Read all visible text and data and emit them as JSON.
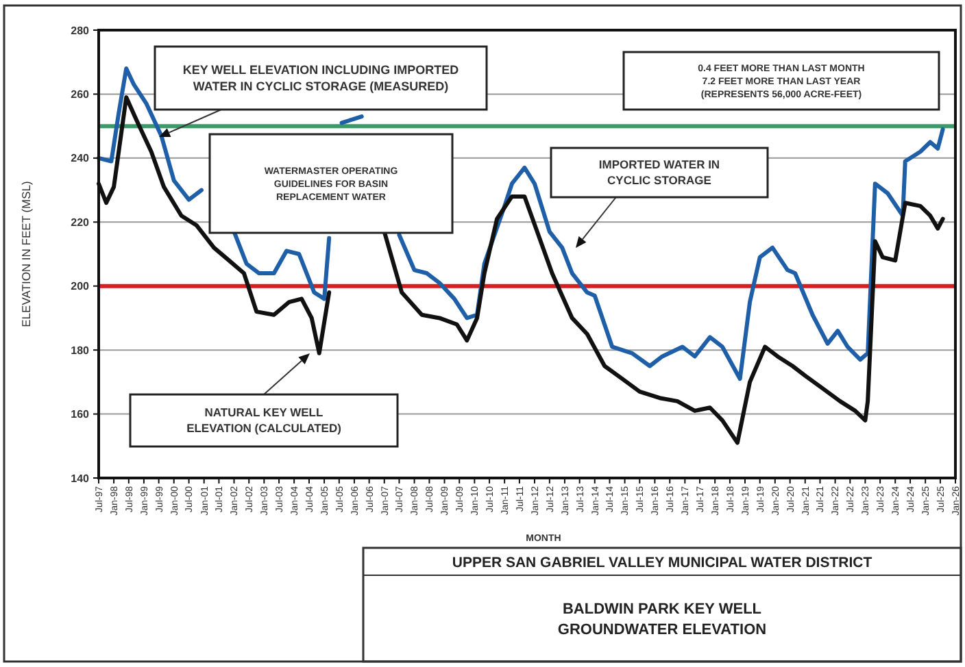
{
  "chart_data": {
    "type": "line",
    "title": "UPPER SAN GABRIEL VALLEY MUNICIPAL WATER DISTRICT",
    "subtitle": "BALDWIN PARK KEY WELL\nGROUNDWATER ELEVATION",
    "xlabel": "MONTH",
    "ylabel": "ELEVATION IN FEET (MSL)",
    "series": [
      {
        "color": "#1f5fa8",
        "x": [
          "1997-07",
          "1997-12",
          "1998-03",
          "1998-06",
          "1998-09",
          "1999-02",
          "1999-08",
          "2000-01",
          "2000-07",
          "2000-12",
          "2001-06",
          "2002-01",
          "2002-06",
          "2002-11",
          "2003-05",
          "2003-10",
          "2004-03",
          "2004-09",
          "2005-01",
          "2005-03",
          "2005-05",
          "2005-08",
          "2006-04",
          "2006-12",
          "2007-07",
          "2008-01",
          "2008-06",
          "2008-11",
          "2009-05",
          "2009-10",
          "2010-02",
          "2010-05",
          "2011-01",
          "2011-04",
          "2011-09",
          "2012-01",
          "2012-07",
          "2012-12",
          "2013-04",
          "2013-10",
          "2014-01",
          "2014-08",
          "2015-04",
          "2015-11",
          "2016-04",
          "2016-12",
          "2017-05",
          "2017-11",
          "2018-04",
          "2018-11",
          "2019-03",
          "2019-07",
          "2019-12",
          "2020-06",
          "2020-09",
          "2021-04",
          "2021-10",
          "2022-02",
          "2022-06",
          "2022-11",
          "2023-02",
          "2023-05",
          "2023-10",
          "2024-04",
          "2024-05",
          "2024-11",
          "2025-03",
          "2025-06",
          "2025-08"
        ],
        "values": [
          240,
          239,
          254,
          268,
          263,
          257,
          247,
          233,
          227,
          230,
          null,
          217,
          207,
          204,
          204,
          211,
          210,
          198,
          196,
          215,
          null,
          251,
          253,
          null,
          216,
          205,
          204,
          201,
          196,
          190,
          191,
          207,
          225,
          232,
          237,
          232,
          217,
          212,
          204,
          198,
          197,
          181,
          179,
          175,
          178,
          181,
          178,
          184,
          181,
          171,
          195,
          209,
          212,
          205,
          204,
          191,
          182,
          186,
          181,
          177,
          179,
          232,
          229,
          222,
          239,
          242,
          245,
          243,
          249
        ]
      },
      {
        "color": "#111111",
        "x": [
          "1997-07",
          "1997-10",
          "1998-01",
          "1998-06",
          "1998-10",
          "1999-04",
          "1999-09",
          "2000-04",
          "2000-10",
          "2001-05",
          "2001-11",
          "2002-05",
          "2002-10",
          "2003-05",
          "2003-11",
          "2004-04",
          "2004-08",
          "2004-11",
          "2005-03",
          "2005-05",
          "2007-01",
          "2007-08",
          "2008-04",
          "2008-11",
          "2009-06",
          "2009-10",
          "2010-02",
          "2010-05",
          "2010-10",
          "2011-04",
          "2011-09",
          "2012-03",
          "2012-08",
          "2013-04",
          "2013-10",
          "2014-05",
          "2014-12",
          "2015-07",
          "2016-03",
          "2016-10",
          "2017-05",
          "2017-11",
          "2018-04",
          "2018-10",
          "2019-03",
          "2019-09",
          "2020-02",
          "2020-08",
          "2021-01",
          "2021-08",
          "2022-03",
          "2022-09",
          "2023-01",
          "2023-02",
          "2023-05",
          "2023-08",
          "2024-01",
          "2024-05",
          "2024-11",
          "2025-03",
          "2025-06",
          "2025-08"
        ],
        "values": [
          232,
          226,
          231,
          259,
          252,
          242,
          231,
          222,
          219,
          212,
          208,
          204,
          192,
          191,
          195,
          196,
          190,
          179,
          198,
          null,
          217,
          198,
          191,
          190,
          188,
          183,
          190,
          204,
          221,
          228,
          228,
          215,
          204,
          190,
          185,
          175,
          171,
          167,
          165,
          164,
          161,
          162,
          158,
          151,
          170,
          181,
          178,
          175,
          172,
          168,
          164,
          161,
          158,
          164,
          214,
          209,
          208,
          226,
          225,
          222,
          218,
          221
        ]
      }
    ],
    "xlim": [
      "1997-07",
      "2026-01"
    ],
    "xticks": [
      {
        "value": "1997-07",
        "label": "Jul-97"
      },
      {
        "value": "1998-01",
        "label": "Jan-98"
      },
      {
        "value": "1998-07",
        "label": "Jul-98"
      },
      {
        "value": "1999-01",
        "label": "Jan-99"
      },
      {
        "value": "1999-07",
        "label": "Jul-99"
      },
      {
        "value": "2000-01",
        "label": "Jan-00"
      },
      {
        "value": "2000-07",
        "label": "Jul-00"
      },
      {
        "value": "2001-01",
        "label": "Jan-01"
      },
      {
        "value": "2001-07",
        "label": "Jul-01"
      },
      {
        "value": "2002-01",
        "label": "Jan-02"
      },
      {
        "value": "2002-07",
        "label": "Jul-02"
      },
      {
        "value": "2003-01",
        "label": "Jan-03"
      },
      {
        "value": "2003-07",
        "label": "Jul-03"
      },
      {
        "value": "2004-01",
        "label": "Jan-04"
      },
      {
        "value": "2004-07",
        "label": "Jul-04"
      },
      {
        "value": "2005-01",
        "label": "Jan-05"
      },
      {
        "value": "2005-07",
        "label": "Jul-05"
      },
      {
        "value": "2006-01",
        "label": "Jan-06"
      },
      {
        "value": "2006-07",
        "label": "Jul-06"
      },
      {
        "value": "2007-01",
        "label": "Jan-07"
      },
      {
        "value": "2007-07",
        "label": "Jul-07"
      },
      {
        "value": "2008-01",
        "label": "Jan-08"
      },
      {
        "value": "2008-07",
        "label": "Jul-08"
      },
      {
        "value": "2009-01",
        "label": "Jan-09"
      },
      {
        "value": "2009-07",
        "label": "Jul-09"
      },
      {
        "value": "2010-01",
        "label": "Jan-10"
      },
      {
        "value": "2010-07",
        "label": "Jul-10"
      },
      {
        "value": "2011-01",
        "label": "Jan-11"
      },
      {
        "value": "2011-07",
        "label": "Jul-11"
      },
      {
        "value": "2012-01",
        "label": "Jan-12"
      },
      {
        "value": "2012-07",
        "label": "Jul-12"
      },
      {
        "value": "2013-01",
        "label": "Jan-13"
      },
      {
        "value": "2013-07",
        "label": "Jul-13"
      },
      {
        "value": "2014-01",
        "label": "Jan-14"
      },
      {
        "value": "2014-07",
        "label": "Jul-14"
      },
      {
        "value": "2015-01",
        "label": "Jan-15"
      },
      {
        "value": "2015-07",
        "label": "Jul-15"
      },
      {
        "value": "2016-01",
        "label": "Jan-16"
      },
      {
        "value": "2016-07",
        "label": "Jul-16"
      },
      {
        "value": "2017-01",
        "label": "Jan-17"
      },
      {
        "value": "2017-07",
        "label": "Jul-17"
      },
      {
        "value": "2018-01",
        "label": "Jan-18"
      },
      {
        "value": "2018-07",
        "label": "Jul-18"
      },
      {
        "value": "2019-01",
        "label": "Jan-19"
      },
      {
        "value": "2019-07",
        "label": "Jul-19"
      },
      {
        "value": "2020-01",
        "label": "Jan-20"
      },
      {
        "value": "2020-07",
        "label": "Jul-20"
      },
      {
        "value": "2021-01",
        "label": "Jan-21"
      },
      {
        "value": "2021-07",
        "label": "Jul-21"
      },
      {
        "value": "2022-01",
        "label": "Jan-22"
      },
      {
        "value": "2022-07",
        "label": "Jul-22"
      },
      {
        "value": "2023-01",
        "label": "Jan-23"
      },
      {
        "value": "2023-07",
        "label": "Jul-23"
      },
      {
        "value": "2024-01",
        "label": "Jan-24"
      },
      {
        "value": "2024-07",
        "label": "Jul-24"
      },
      {
        "value": "2025-01",
        "label": "Jan-25"
      },
      {
        "value": "2025-07",
        "label": "Jul-25"
      },
      {
        "value": "2026-01",
        "label": "Jan-26"
      }
    ],
    "ylim": [
      140,
      280
    ],
    "yticks": [
      140,
      160,
      180,
      200,
      220,
      240,
      260,
      280
    ],
    "grid": "y",
    "ref_lines": [
      {
        "axis": "y",
        "value": 250,
        "color": "#3a9a6a"
      },
      {
        "axis": "y",
        "value": 200,
        "color": "#d42020"
      }
    ],
    "annotations": [
      "KEY WELL ELEVATION INCLUDING IMPORTED\nWATER IN CYCLIC STORAGE (MEASURED)",
      "WATERMASTER OPERATING\nGUIDELINES FOR BASIN\nREPLACEMENT WATER",
      "IMPORTED WATER IN\nCYCLIC STORAGE",
      "0.4 FEET MORE THAN LAST MONTH\n7.2 FEET MORE THAN LAST YEAR\n(REPRESENTS 56,000 ACRE-FEET)",
      "NATURAL KEY WELL\nELEVATION  (CALCULATED)"
    ]
  }
}
